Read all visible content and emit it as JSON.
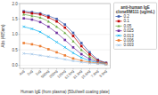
{
  "chart_data": {
    "type": "line",
    "xlabel": "Human IgE (from plasma) [50ul/well coating plate]",
    "ylabel": "Abs (405nm)",
    "legend_title": "anti-human IgE\ncloneRM111 (ug/mL)",
    "categories": [
      "4ug",
      "2ug",
      "1ug",
      "500ng",
      "250ng",
      "125ng",
      "62.5ng",
      "31.3ng",
      "15.6ng",
      "7.8ng",
      "3.9ng"
    ],
    "series": [
      {
        "name": "0.2",
        "color": "#3f5faf",
        "marker": "square",
        "values": [
          1.75,
          1.72,
          1.68,
          1.6,
          1.5,
          1.32,
          1.05,
          0.72,
          0.42,
          0.18,
          0.08
        ]
      },
      {
        "name": "0.1",
        "color": "#c00000",
        "marker": "square",
        "values": [
          1.72,
          1.68,
          1.65,
          1.55,
          1.42,
          1.22,
          0.95,
          0.62,
          0.35,
          0.15,
          0.07
        ]
      },
      {
        "name": "0.05",
        "color": "#70ad47",
        "marker": "triangle",
        "values": [
          1.65,
          1.6,
          1.55,
          1.42,
          1.25,
          1.05,
          0.78,
          0.5,
          0.28,
          0.12,
          0.06
        ]
      },
      {
        "name": "0.025",
        "color": "#7030a0",
        "marker": "square",
        "values": [
          1.52,
          1.48,
          1.4,
          1.25,
          1.05,
          0.82,
          0.58,
          0.36,
          0.2,
          0.1,
          0.05
        ]
      },
      {
        "name": "0.013",
        "color": "#00b0f0",
        "marker": "x",
        "values": [
          1.25,
          1.18,
          1.08,
          0.92,
          0.75,
          0.58,
          0.4,
          0.25,
          0.14,
          0.08,
          0.04
        ]
      },
      {
        "name": "0.006",
        "color": "#ed7d31",
        "marker": "square",
        "values": [
          0.72,
          0.68,
          0.62,
          0.52,
          0.42,
          0.32,
          0.22,
          0.15,
          0.1,
          0.07,
          0.04
        ]
      },
      {
        "name": "0.003",
        "color": "#9dc3e6",
        "marker": "x",
        "values": [
          0.38,
          0.36,
          0.32,
          0.28,
          0.24,
          0.19,
          0.14,
          0.1,
          0.07,
          0.05,
          0.03
        ]
      }
    ],
    "ylim": [
      -0.1,
      2.0
    ],
    "yticks": [
      {
        "value": 0.0,
        "label": "0.0"
      },
      {
        "value": 0.5,
        "label": "0.5"
      },
      {
        "value": 1.0,
        "label": "1.0"
      },
      {
        "value": 1.5,
        "label": "1.5"
      },
      {
        "value": 2.0,
        "label": "2.0"
      }
    ],
    "grid": true,
    "legend": "right"
  }
}
